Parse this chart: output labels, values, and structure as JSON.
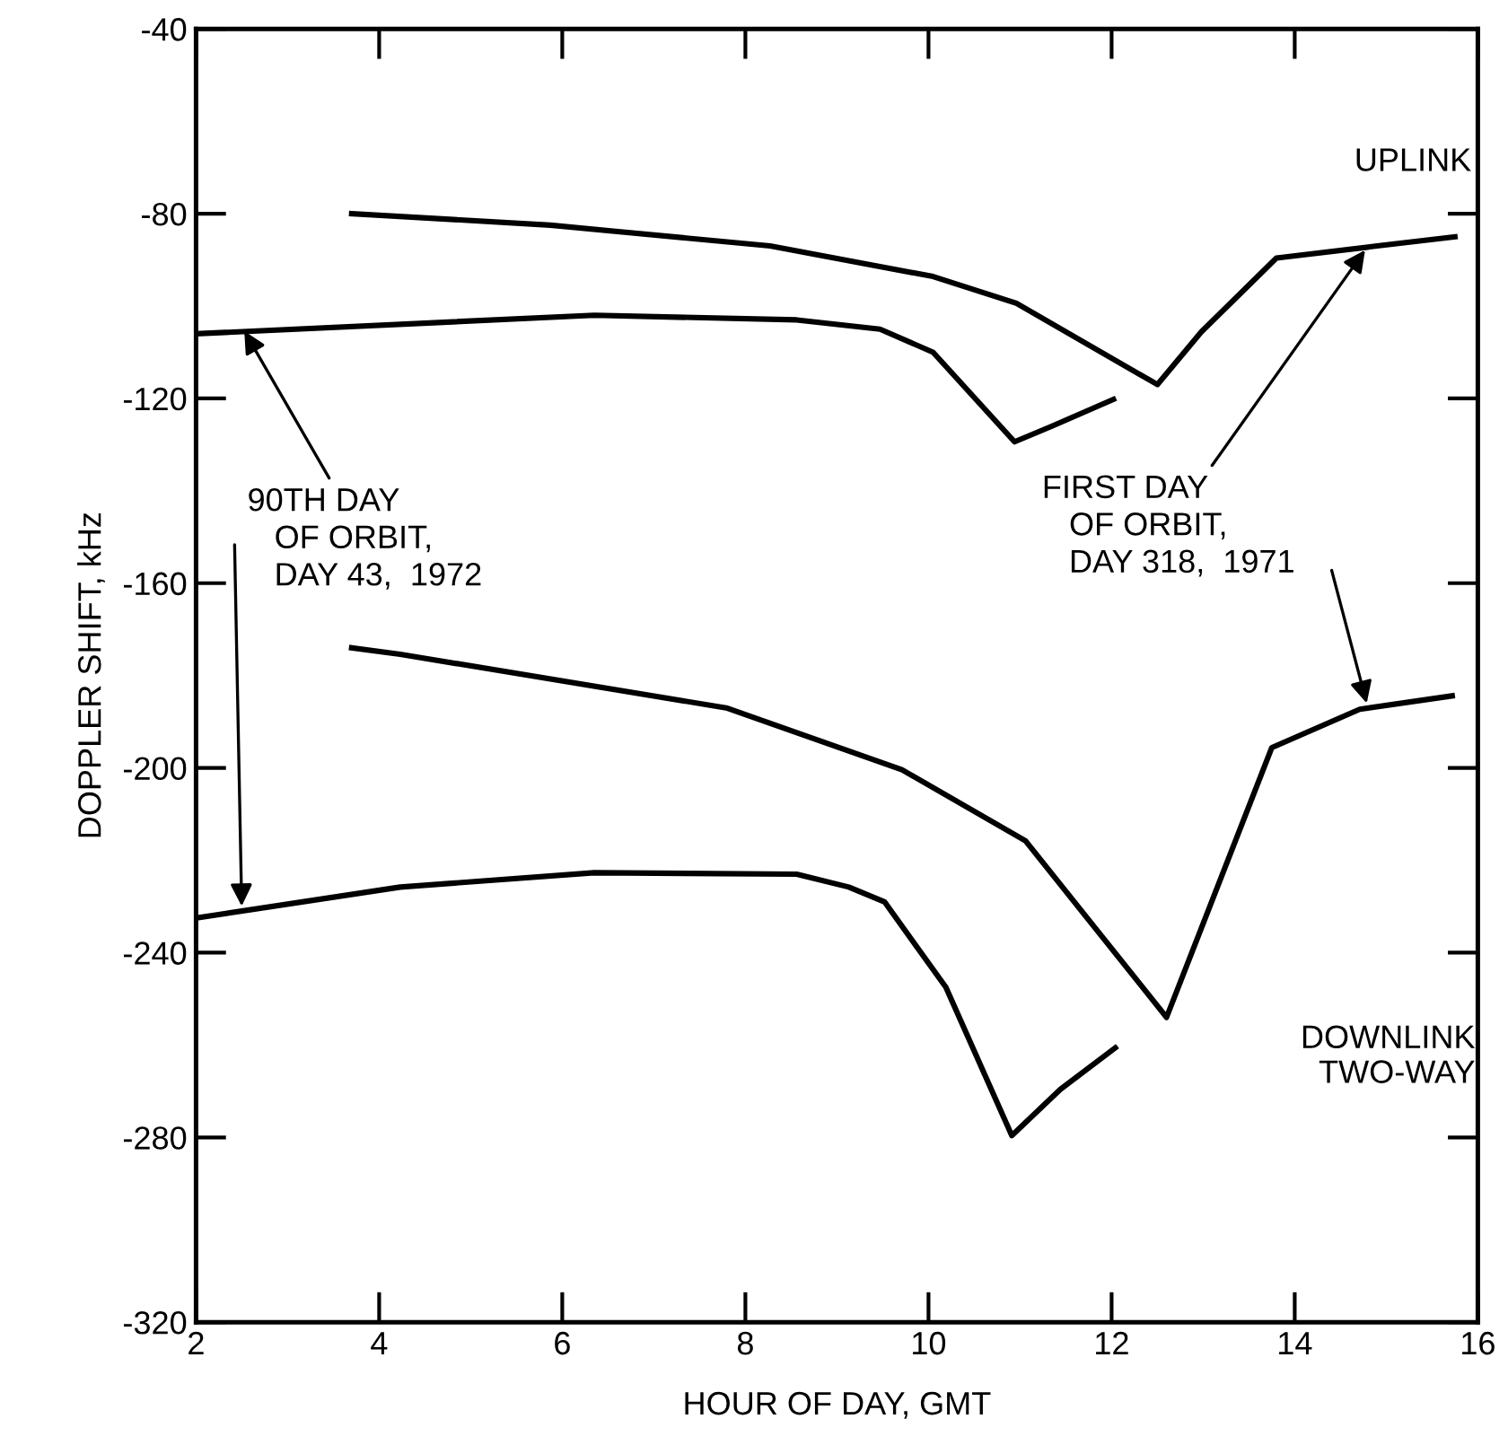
{
  "chart_data": {
    "type": "line",
    "xlabel": "HOUR OF DAY, GMT",
    "ylabel": "DOPPLER SHIFT, kHz",
    "xlim": [
      2,
      16
    ],
    "xticks": [
      2,
      4,
      6,
      8,
      10,
      12,
      14,
      16
    ],
    "ylim": [
      -320,
      -40
    ],
    "yticks": [
      -320,
      -280,
      -240,
      -200,
      -160,
      -120,
      -80,
      -40
    ],
    "grid": false,
    "legend": false,
    "marker": "none",
    "line_style": "solid",
    "series": [
      {
        "color": "#000000",
        "x": [
          3.7,
          5.87,
          8.27,
          10.05,
          10.96,
          12.5,
          12.98,
          13.8,
          14.9,
          15.75
        ],
        "values": [
          -80,
          -82.5,
          -87,
          -93.6,
          -99.4,
          -117,
          -105.6,
          -89.6,
          -87,
          -85
        ]
      },
      {
        "color": "#000000",
        "x": [
          2,
          6.35,
          8.56,
          9.47,
          10.05,
          10.94,
          11.35,
          12.02
        ],
        "values": [
          -106,
          -102,
          -103,
          -105,
          -110,
          -129.4,
          -126,
          -120.2
        ]
      },
      {
        "color": "#000000",
        "x": [
          3.7,
          4.23,
          7.79,
          9.71,
          11.06,
          12.6,
          13.75,
          14.71,
          15.72
        ],
        "values": [
          -174,
          -175.4,
          -187,
          -200.4,
          -215.8,
          -254,
          -195.6,
          -187.3,
          -184.4
        ]
      },
      {
        "color": "#000000",
        "x": [
          2,
          4.23,
          6.35,
          8.56,
          9.13,
          9.52,
          10.19,
          10.91,
          11.44,
          12.04
        ],
        "values": [
          -232.5,
          -225.8,
          -222.7,
          -223,
          -225.8,
          -229,
          -247.5,
          -279.6,
          -269.6,
          -260.6
        ]
      }
    ],
    "annotations": [
      "UPLINK",
      "DOWNLINK\nTWO-WAY",
      {
        "text": "90TH DAY\n   OF ORBIT,\n   DAY 43,  1972",
        "x": 2.5,
        "y": -104.5
      },
      {
        "text": "FIRST DAY\n   OF ORBIT,\n   DAY 318,  1971",
        "x": 14.8,
        "y": -87
      }
    ]
  }
}
